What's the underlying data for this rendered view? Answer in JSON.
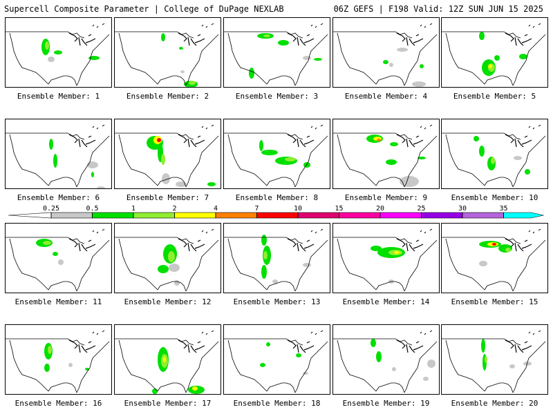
{
  "header": {
    "title_left": "Supercell Composite Parameter | College of DuPage NEXLAB",
    "title_right": "06Z GEFS | F198 Valid: 12Z SUN JUN 15 2025"
  },
  "legend": {
    "ticks": [
      "0.25",
      "0.5",
      "1",
      "2",
      "4",
      "7",
      "10",
      "15",
      "20",
      "25",
      "30",
      "35"
    ],
    "colors": [
      "#c8c8c8",
      "#00e000",
      "#90ee30",
      "#ffff00",
      "#ff8000",
      "#ff0000",
      "#e0006e",
      "#ff00a0",
      "#ff00ff",
      "#9600e6",
      "#b464dc",
      "#00ffff"
    ]
  },
  "members": [
    {
      "label": "Ensemble Member: 1"
    },
    {
      "label": "Ensemble Member: 2"
    },
    {
      "label": "Ensemble Member: 3"
    },
    {
      "label": "Ensemble Member: 4"
    },
    {
      "label": "Ensemble Member: 5"
    },
    {
      "label": "Ensemble Member: 6"
    },
    {
      "label": "Ensemble Member: 7"
    },
    {
      "label": "Ensemble Member: 8"
    },
    {
      "label": "Ensemble Member: 9"
    },
    {
      "label": "Ensemble Member: 10"
    },
    {
      "label": "Ensemble Member: 11"
    },
    {
      "label": "Ensemble Member: 12"
    },
    {
      "label": "Ensemble Member: 13"
    },
    {
      "label": "Ensemble Member: 14"
    },
    {
      "label": "Ensemble Member: 15"
    },
    {
      "label": "Ensemble Member: 16"
    },
    {
      "label": "Ensemble Member: 17"
    },
    {
      "label": "Ensemble Member: 18"
    },
    {
      "label": "Ensemble Member: 19"
    },
    {
      "label": "Ensemble Member: 20"
    }
  ]
}
